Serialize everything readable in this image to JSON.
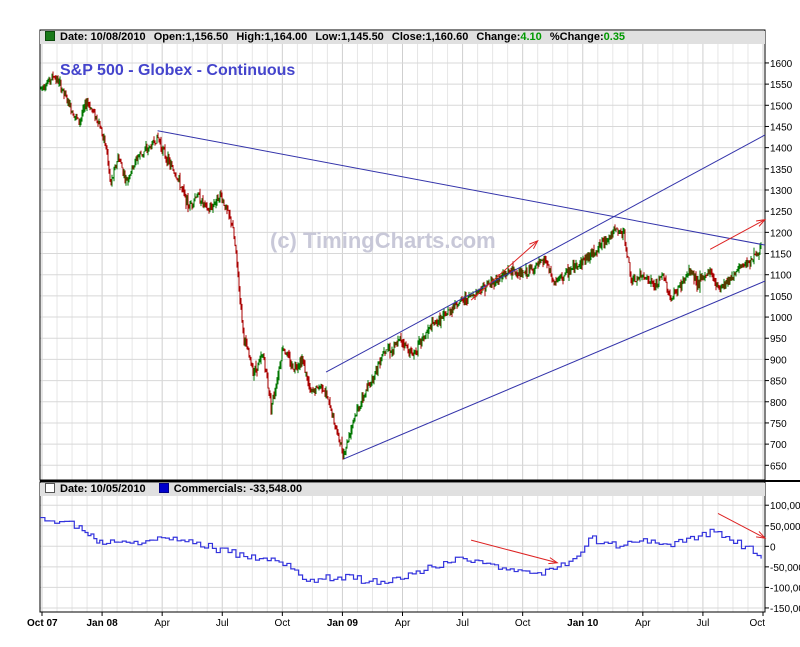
{
  "header": {
    "date_label": "Date: 10/08/2010",
    "open_label": "Open:1,156.50",
    "high_label": "High:1,164.00",
    "low_label": "Low:1,145.50",
    "close_label": "Close:1,160.60",
    "change_label": "Change:",
    "change_value": "4.10",
    "pct_change_label": "%Change:",
    "pct_change_value": "0.35"
  },
  "sub_header": {
    "date_label": "Date: 10/05/2010",
    "series_label": "Commercials: -33,548.00"
  },
  "title": "S&P 500 - Globex - Continuous",
  "watermark": "(c) TimingCharts.com",
  "colors": {
    "price_axis_color": "#000000",
    "trend_line": "#3333aa",
    "arrow": "#dd2222",
    "series_line": "#3333dd",
    "up_bar": "#007700",
    "down_bar": "#aa0000"
  },
  "chart_data": [
    {
      "type": "ohlc",
      "title": "S&P 500 - Globex - Continuous",
      "grid": true,
      "y_axis_side": "right",
      "y_ticks": [
        650,
        700,
        750,
        800,
        850,
        900,
        950,
        1000,
        1050,
        1100,
        1150,
        1200,
        1250,
        1300,
        1350,
        1400,
        1450,
        1500,
        1550,
        1600
      ],
      "x_ticks": [
        "Oct 07",
        "Jan 08",
        "Apr",
        "Jul",
        "Oct",
        "Jan 09",
        "Apr",
        "Jul",
        "Oct",
        "Jan 10",
        "Apr",
        "Jul",
        "Oct"
      ],
      "ylim": [
        620,
        1640
      ],
      "price_path": [
        {
          "x": 0.0,
          "y": 1540
        },
        {
          "x": 0.2,
          "y": 1555
        },
        {
          "x": 0.35,
          "y": 1570
        },
        {
          "x": 0.5,
          "y": 1550
        },
        {
          "x": 0.8,
          "y": 1490
        },
        {
          "x": 1.0,
          "y": 1460
        },
        {
          "x": 1.2,
          "y": 1510
        },
        {
          "x": 1.5,
          "y": 1460
        },
        {
          "x": 1.7,
          "y": 1395
        },
        {
          "x": 1.8,
          "y": 1310
        },
        {
          "x": 2.0,
          "y": 1380
        },
        {
          "x": 2.2,
          "y": 1320
        },
        {
          "x": 2.5,
          "y": 1380
        },
        {
          "x": 2.8,
          "y": 1400
        },
        {
          "x": 3.0,
          "y": 1425
        },
        {
          "x": 3.2,
          "y": 1380
        },
        {
          "x": 3.5,
          "y": 1330
        },
        {
          "x": 3.8,
          "y": 1260
        },
        {
          "x": 4.0,
          "y": 1290
        },
        {
          "x": 4.3,
          "y": 1250
        },
        {
          "x": 4.6,
          "y": 1290
        },
        {
          "x": 4.9,
          "y": 1220
        },
        {
          "x": 5.0,
          "y": 1150
        },
        {
          "x": 5.2,
          "y": 950
        },
        {
          "x": 5.45,
          "y": 870
        },
        {
          "x": 5.7,
          "y": 910
        },
        {
          "x": 5.9,
          "y": 790
        },
        {
          "x": 6.0,
          "y": 830
        },
        {
          "x": 6.2,
          "y": 930
        },
        {
          "x": 6.45,
          "y": 880
        },
        {
          "x": 6.7,
          "y": 900
        },
        {
          "x": 6.9,
          "y": 820
        },
        {
          "x": 7.2,
          "y": 840
        },
        {
          "x": 7.4,
          "y": 790
        },
        {
          "x": 7.6,
          "y": 720
        },
        {
          "x": 7.75,
          "y": 675
        },
        {
          "x": 8.0,
          "y": 760
        },
        {
          "x": 8.3,
          "y": 820
        },
        {
          "x": 8.6,
          "y": 880
        },
        {
          "x": 8.8,
          "y": 930
        },
        {
          "x": 9.0,
          "y": 920
        },
        {
          "x": 9.2,
          "y": 950
        },
        {
          "x": 9.5,
          "y": 910
        },
        {
          "x": 9.7,
          "y": 940
        },
        {
          "x": 10.0,
          "y": 980
        },
        {
          "x": 10.3,
          "y": 1000
        },
        {
          "x": 10.6,
          "y": 1030
        },
        {
          "x": 11.0,
          "y": 1050
        },
        {
          "x": 11.3,
          "y": 1070
        },
        {
          "x": 11.7,
          "y": 1090
        },
        {
          "x": 12.0,
          "y": 1110
        },
        {
          "x": 12.3,
          "y": 1100
        },
        {
          "x": 12.6,
          "y": 1115
        },
        {
          "x": 12.9,
          "y": 1135
        },
        {
          "x": 13.1,
          "y": 1080
        },
        {
          "x": 13.4,
          "y": 1100
        },
        {
          "x": 13.8,
          "y": 1130
        },
        {
          "x": 14.1,
          "y": 1150
        },
        {
          "x": 14.4,
          "y": 1180
        },
        {
          "x": 14.7,
          "y": 1205
        },
        {
          "x": 14.9,
          "y": 1195
        },
        {
          "x": 15.1,
          "y": 1080
        },
        {
          "x": 15.4,
          "y": 1100
        },
        {
          "x": 15.7,
          "y": 1070
        },
        {
          "x": 15.9,
          "y": 1100
        },
        {
          "x": 16.1,
          "y": 1040
        },
        {
          "x": 16.3,
          "y": 1070
        },
        {
          "x": 16.6,
          "y": 1110
        },
        {
          "x": 16.8,
          "y": 1080
        },
        {
          "x": 17.1,
          "y": 1110
        },
        {
          "x": 17.3,
          "y": 1070
        },
        {
          "x": 17.6,
          "y": 1090
        },
        {
          "x": 17.9,
          "y": 1120
        },
        {
          "x": 18.2,
          "y": 1140
        },
        {
          "x": 18.4,
          "y": 1160
        }
      ],
      "trendlines": [
        {
          "x1": 3.0,
          "y1": 1440,
          "x2": 18.5,
          "y2": 1170
        },
        {
          "x1": 7.3,
          "y1": 870,
          "x2": 18.5,
          "y2": 1430
        },
        {
          "x1": 7.75,
          "y1": 665,
          "x2": 18.5,
          "y2": 1085
        }
      ],
      "arrows": [
        {
          "x1": 11.0,
          "y1": 1040,
          "x2": 12.7,
          "y2": 1180
        },
        {
          "x1": 17.1,
          "y1": 1160,
          "x2": 18.5,
          "y2": 1230
        }
      ]
    },
    {
      "type": "line",
      "name": "Commercials",
      "y_axis_side": "right",
      "y_ticks": [
        -150000,
        -100000,
        -50000,
        0,
        50000,
        100000
      ],
      "y_tick_labels": [
        "-150,000",
        "-100,000",
        "-50,000",
        "0",
        "50,000",
        "100,000"
      ],
      "ylim": [
        -155000,
        120000
      ],
      "x": [
        0.0,
        0.5,
        1.0,
        1.3,
        1.6,
        2.0,
        2.4,
        2.8,
        3.2,
        3.6,
        4.0,
        4.4,
        4.8,
        5.2,
        5.6,
        6.0,
        6.4,
        6.8,
        7.2,
        7.6,
        8.0,
        8.4,
        8.8,
        9.2,
        9.6,
        10.0,
        10.4,
        10.8,
        11.2,
        11.6,
        12.0,
        12.4,
        12.8,
        13.2,
        13.6,
        14.0,
        14.4,
        14.8,
        15.2,
        15.6,
        16.0,
        16.4,
        16.8,
        17.2,
        17.6,
        18.0,
        18.4
      ],
      "values": [
        70000,
        60000,
        50000,
        30000,
        5000,
        10000,
        12000,
        15000,
        20000,
        15000,
        10000,
        -5000,
        -15000,
        -25000,
        -30000,
        -35000,
        -55000,
        -85000,
        -80000,
        -75000,
        -80000,
        -85000,
        -90000,
        -80000,
        -60000,
        -50000,
        -40000,
        -30000,
        -35000,
        -45000,
        -55000,
        -60000,
        -70000,
        -50000,
        -30000,
        20000,
        10000,
        0,
        10000,
        15000,
        5000,
        10000,
        25000,
        35000,
        15000,
        0,
        -30000
      ],
      "arrows": [
        {
          "x1": 11.0,
          "y1": 15000,
          "x2": 13.2,
          "y2": -40000
        },
        {
          "x1": 17.3,
          "y1": 80000,
          "x2": 18.5,
          "y2": 20000
        }
      ]
    }
  ]
}
